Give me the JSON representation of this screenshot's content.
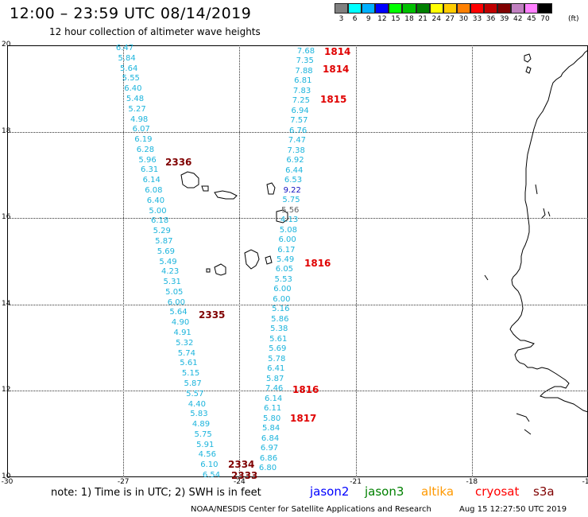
{
  "header": {
    "title": "12:00 – 23:59 UTC 08/14/2019",
    "subtitle": "12 hour collection of altimeter wave heights"
  },
  "legend": {
    "unit": "(ft)",
    "items": [
      {
        "label": "3",
        "color": "#808080"
      },
      {
        "label": "6",
        "color": "#00ffff"
      },
      {
        "label": "9",
        "color": "#00b0ff"
      },
      {
        "label": "12",
        "color": "#0000ff"
      },
      {
        "label": "15",
        "color": "#00ff00"
      },
      {
        "label": "18",
        "color": "#00c000"
      },
      {
        "label": "21",
        "color": "#008000"
      },
      {
        "label": "24",
        "color": "#ffff00"
      },
      {
        "label": "27",
        "color": "#ffcc00"
      },
      {
        "label": "30",
        "color": "#ff8000"
      },
      {
        "label": "33",
        "color": "#ff0000"
      },
      {
        "label": "36",
        "color": "#c00000"
      },
      {
        "label": "39",
        "color": "#800000"
      },
      {
        "label": "42",
        "color": "#c080c0"
      },
      {
        "label": "45",
        "color": "#ff80ff"
      },
      {
        "label": "70",
        "color": "#000000"
      }
    ]
  },
  "map": {
    "lon_range": [
      -30,
      -15
    ],
    "lat_range": [
      10,
      20
    ],
    "lon_ticks": [
      "-30",
      "-27",
      "-24",
      "-21",
      "-18",
      "-15"
    ],
    "lat_ticks": [
      "20",
      "18",
      "16",
      "14",
      "12",
      "10"
    ]
  },
  "tracks": {
    "west": {
      "color": "#1cb4dc",
      "labels": [
        "6.47",
        "5.84",
        "5.64",
        "5.55",
        "6.40",
        "5.48",
        "5.27",
        "4.98",
        "6.07",
        "6.19",
        "6.28",
        "5.96",
        "6.31",
        "6.14",
        "6.08",
        "6.40",
        "5.00",
        "6.18",
        "5.29",
        "5.87",
        "5.69",
        "5.49",
        "4.23",
        "5.31",
        "5.05",
        "6.00",
        "5.64",
        "4.90",
        "4.91",
        "5.32",
        "5.74",
        "5.61",
        "5.15",
        "5.87",
        "5.57",
        "4.40",
        "5.83",
        "4.89",
        "5.75",
        "5.91",
        "4.56",
        "6.10",
        "6.54"
      ]
    },
    "east": {
      "color": "#1cb4dc",
      "labels": [
        "7.68",
        "7.35",
        "7.88",
        "6.81",
        "7.83",
        "7.25",
        "6.94",
        "7.57",
        "6.76",
        "7.47",
        "7.38",
        "6.92",
        "6.44",
        "6.53",
        "9.22",
        "5.75",
        "5.56",
        "4.13",
        "5.08",
        "6.00",
        "6.17",
        "5.49",
        "6.05",
        "5.53",
        "6.00",
        "6.00",
        "5.16",
        "5.86",
        "5.38",
        "5.61",
        "5.69",
        "5.78",
        "6.41",
        "5.87",
        "7.46",
        "6.14",
        "6.11",
        "5.80",
        "5.84",
        "6.84",
        "6.97",
        "6.86",
        "6.80"
      ]
    }
  },
  "passes": [
    {
      "label": "1814",
      "color": "#e00000"
    },
    {
      "label": "1814",
      "color": "#e00000"
    },
    {
      "label": "1815",
      "color": "#e00000"
    },
    {
      "label": "1816",
      "color": "#e00000"
    },
    {
      "label": "1816",
      "color": "#e00000"
    },
    {
      "label": "1817",
      "color": "#e00000"
    },
    {
      "label": "2336",
      "color": "#800000"
    },
    {
      "label": "2335",
      "color": "#800000"
    },
    {
      "label": "2334",
      "color": "#800000"
    },
    {
      "label": "2333",
      "color": "#800000"
    }
  ],
  "footer": {
    "note": "note: 1) Time is in UTC; 2) SWH is in feet",
    "satellites": [
      {
        "name": "jason2",
        "color": "#0000ff"
      },
      {
        "name": "jason3",
        "color": "#008000"
      },
      {
        "name": "altika",
        "color": "#ff9900"
      },
      {
        "name": "cryosat",
        "color": "#ff0000"
      },
      {
        "name": "s3a",
        "color": "#800000"
      }
    ],
    "credit": "NOAA/NESDIS Center for Satellite Applications and Research",
    "timestamp": "Aug 15 12:27:50 UTC 2019"
  }
}
